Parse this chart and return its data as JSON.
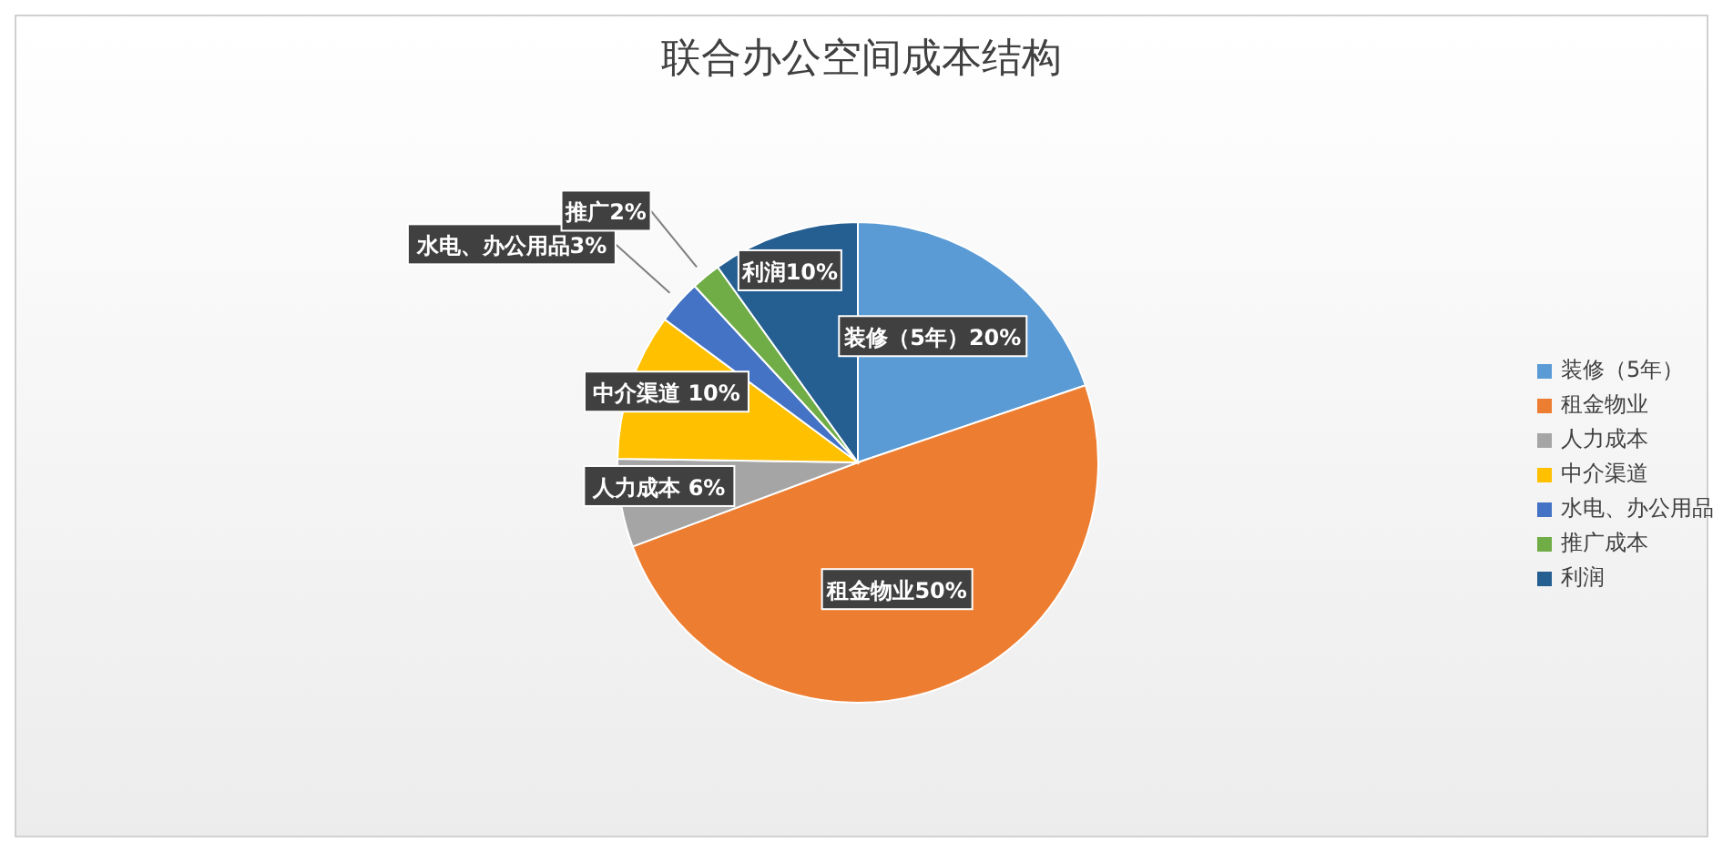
{
  "chart_data": {
    "type": "pie",
    "title": "联合办公空间成本结构",
    "categories": [
      "装修（5年）",
      "租金物业",
      "人力成本",
      "中介渠道",
      "水电、办公用品",
      "推广成本",
      "利润"
    ],
    "values": [
      20,
      50,
      6,
      10,
      3,
      2,
      10
    ],
    "value_labels": [
      "装修（5年）20%",
      "租金物业50%",
      "人力成本 6%",
      "中介渠道 10%",
      "水电、办公用品3%",
      "推广2%",
      "利润10%"
    ],
    "colors": [
      "#5b9bd5",
      "#ed7d31",
      "#a5a5a5",
      "#ffc000",
      "#4472c4",
      "#70ad47",
      "#255e91"
    ],
    "legend": "right"
  }
}
